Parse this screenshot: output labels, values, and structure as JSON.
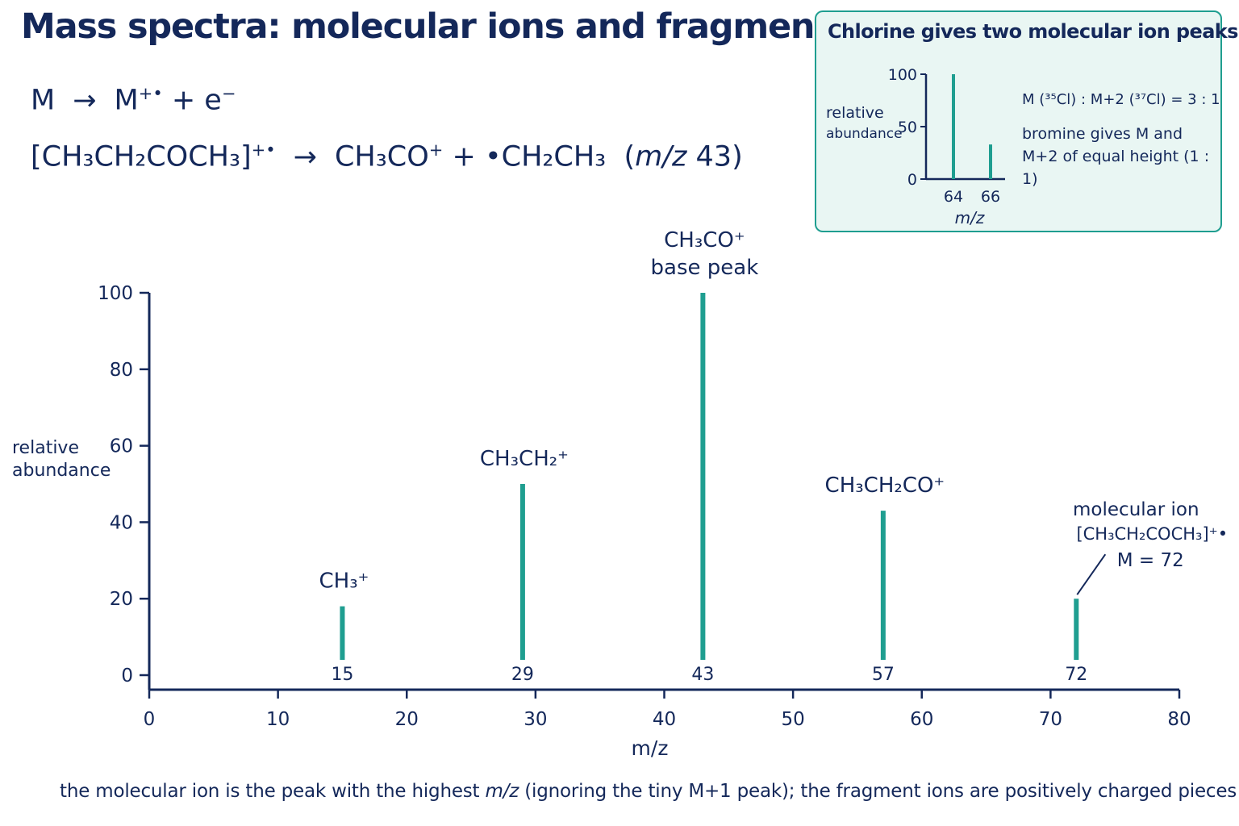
{
  "title": "Mass spectra: molecular ions and fragments",
  "equations": {
    "ionisation": {
      "lhs": "M",
      "arrow": "→",
      "rhs_ion": "M",
      "rhs_ion_charge": "+•",
      "rhs_plus": "+ e",
      "rhs_electron_charge": "−"
    },
    "fragmentation": {
      "lhs": "[CH₃CH₂COCH₃]",
      "lhs_charge": "+•",
      "arrow": "→",
      "product1": "CH₃CO",
      "product1_charge": "+",
      "plus": "+",
      "product2": "•CH₂CH₃",
      "mz_label": "m/z",
      "mz_value": "43"
    }
  },
  "chart_data": [
    {
      "type": "bar",
      "title": "",
      "xlabel": "m/z",
      "ylabel": "relative abundance",
      "xlim": [
        0,
        80
      ],
      "ylim": [
        0,
        100
      ],
      "xticks": [
        0,
        10,
        20,
        30,
        40,
        50,
        60,
        70,
        80
      ],
      "yticks": [
        0,
        20,
        40,
        60,
        80,
        100
      ],
      "grid": false,
      "color": "#1f9e90",
      "peaks": [
        {
          "mz": 15,
          "abundance": 18,
          "label": "15",
          "ion": [
            "CH₃⁺"
          ]
        },
        {
          "mz": 29,
          "abundance": 50,
          "label": "29",
          "ion": [
            "CH₃CH₂⁺"
          ]
        },
        {
          "mz": 43,
          "abundance": 100,
          "label": "43",
          "ion": [
            "CH₃CO⁺",
            "base peak"
          ]
        },
        {
          "mz": 57,
          "abundance": 43,
          "label": "57",
          "ion": [
            "CH₃CH₂CO⁺"
          ]
        },
        {
          "mz": 72,
          "abundance": 20,
          "label": "72",
          "ion": [
            "molecular ion",
            "[CH₃CH₂COCH₃]⁺•",
            "M = 72"
          ]
        }
      ]
    },
    {
      "type": "bar",
      "title": "Chlorine gives two molecular ion peaks",
      "xlabel": "m/z",
      "ylabel": "relative abundance",
      "yticks": [
        0,
        50,
        100
      ],
      "ylim": [
        0,
        100
      ],
      "color": "#1f9e90",
      "peaks": [
        {
          "mz": 64,
          "abundance": 100,
          "label": "64"
        },
        {
          "mz": 66,
          "abundance": 33,
          "label": "66"
        }
      ]
    }
  ],
  "inset": {
    "title": "Chlorine gives two molecular ion peaks",
    "ratio_note": "M (³⁵Cl) : M+2 (³⁷Cl) = 3 : 1",
    "bromine_note": "bromine gives M and M+2 of equal height (1 : 1)",
    "ylabel_line1": "relative",
    "ylabel_line2": "abundance"
  },
  "main_ylabel_line1": "relative",
  "main_ylabel_line2": "abundance",
  "footnote": {
    "before": "the molecular ion is the peak with the highest ",
    "mz": "m/z",
    "after": " (ignoring the tiny M+1 peak); the fragment ions are positively charged pieces"
  },
  "colors": {
    "text": "#14285a",
    "peak": "#1f9e90",
    "inset_bg": "#e9f6f3"
  }
}
